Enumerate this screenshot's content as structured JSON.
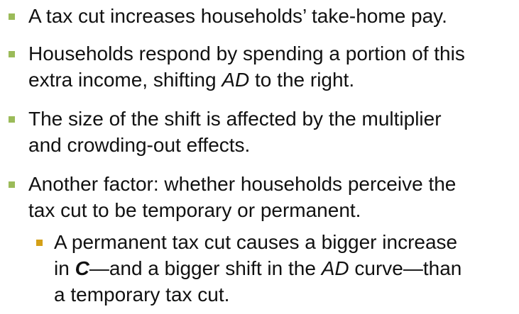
{
  "colors": {
    "level1_marker": "#9bbb59",
    "level2_marker": "#d4a017",
    "text": "#111111"
  },
  "bullets": [
    {
      "level": 1,
      "lines": [
        [
          {
            "t": "A tax cut increases households’ take-home pay."
          }
        ]
      ]
    },
    {
      "level": 1,
      "lines": [
        [
          {
            "t": "Households respond by spending a portion of this"
          }
        ],
        [
          {
            "t": "extra income, shifting "
          },
          {
            "t": "AD",
            "style": "italic"
          },
          {
            "t": " to the right."
          }
        ]
      ]
    },
    {
      "level": 1,
      "lines": [
        [
          {
            "t": "The size of the shift is affected by the multiplier"
          }
        ],
        [
          {
            "t": "and crowding-out effects."
          }
        ]
      ]
    },
    {
      "level": 1,
      "lines": [
        [
          {
            "t": "Another factor:  whether households perceive the"
          }
        ],
        [
          {
            "t": "tax cut to be temporary or permanent."
          }
        ]
      ]
    },
    {
      "level": 2,
      "lines": [
        [
          {
            "t": "A permanent tax cut causes a bigger increase"
          }
        ],
        [
          {
            "t": "in "
          },
          {
            "t": "C",
            "style": "bold-italic"
          },
          {
            "t": "—and a bigger shift in the "
          },
          {
            "t": "AD",
            "style": "italic"
          },
          {
            "t": " curve—than"
          }
        ],
        [
          {
            "t": "a temporary tax cut."
          }
        ]
      ]
    }
  ]
}
